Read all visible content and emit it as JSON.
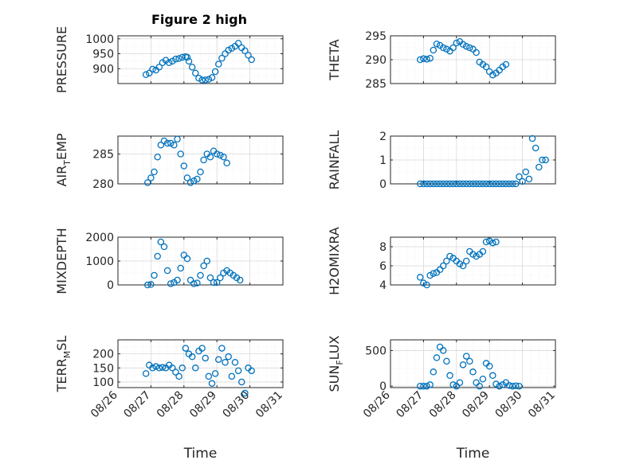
{
  "figure_title": "Figure 2 high",
  "marker_color": "#0072BD",
  "chart_data": [
    {
      "type": "scatter",
      "id": "pressure",
      "title": "Figure 2 high",
      "xlabel": "",
      "ylabel": "PRESSURE",
      "xlim": [
        0,
        5
      ],
      "ylim": [
        850,
        1010
      ],
      "yticks": [
        900,
        950,
        1000
      ],
      "xtick_labels": [],
      "points": [
        [
          0.85,
          880
        ],
        [
          0.95,
          885
        ],
        [
          1.05,
          898
        ],
        [
          1.15,
          895
        ],
        [
          1.25,
          905
        ],
        [
          1.35,
          920
        ],
        [
          1.45,
          928
        ],
        [
          1.55,
          920
        ],
        [
          1.65,
          925
        ],
        [
          1.75,
          932
        ],
        [
          1.85,
          934
        ],
        [
          1.95,
          938
        ],
        [
          2.05,
          940
        ],
        [
          2.1,
          938
        ],
        [
          2.15,
          925
        ],
        [
          2.25,
          905
        ],
        [
          2.35,
          885
        ],
        [
          2.45,
          868
        ],
        [
          2.55,
          862
        ],
        [
          2.65,
          862
        ],
        [
          2.75,
          864
        ],
        [
          2.85,
          870
        ],
        [
          2.95,
          890
        ],
        [
          3.05,
          915
        ],
        [
          3.15,
          935
        ],
        [
          3.25,
          950
        ],
        [
          3.35,
          962
        ],
        [
          3.45,
          968
        ],
        [
          3.55,
          975
        ],
        [
          3.65,
          985
        ],
        [
          3.75,
          970
        ],
        [
          3.85,
          960
        ],
        [
          3.95,
          945
        ],
        [
          4.05,
          930
        ]
      ]
    },
    {
      "type": "scatter",
      "id": "theta",
      "xlabel": "",
      "ylabel": "THETA",
      "xlim": [
        0,
        5
      ],
      "ylim": [
        285,
        295
      ],
      "yticks": [
        285,
        290,
        295
      ],
      "xtick_labels": [],
      "points": [
        [
          0.9,
          290
        ],
        [
          1.0,
          290.2
        ],
        [
          1.1,
          290.1
        ],
        [
          1.2,
          290.3
        ],
        [
          1.3,
          292
        ],
        [
          1.4,
          293.3
        ],
        [
          1.5,
          293.0
        ],
        [
          1.6,
          292.5
        ],
        [
          1.7,
          292.2
        ],
        [
          1.8,
          291.8
        ],
        [
          1.9,
          292.5
        ],
        [
          2.0,
          293.5
        ],
        [
          2.1,
          293.8
        ],
        [
          2.2,
          293.2
        ],
        [
          2.3,
          292.8
        ],
        [
          2.4,
          292.5
        ],
        [
          2.5,
          292.2
        ],
        [
          2.6,
          291.5
        ],
        [
          2.7,
          289.5
        ],
        [
          2.8,
          289.0
        ],
        [
          2.9,
          288.5
        ],
        [
          3.0,
          287.5
        ],
        [
          3.1,
          286.8
        ],
        [
          3.2,
          287.2
        ],
        [
          3.3,
          287.8
        ],
        [
          3.4,
          288.5
        ],
        [
          3.5,
          289.0
        ]
      ]
    },
    {
      "type": "scatter",
      "id": "air-temp",
      "xlabel": "",
      "ylabel": "AIR_TEMP",
      "xlim": [
        0,
        5
      ],
      "ylim": [
        280,
        288
      ],
      "yticks": [
        280,
        285
      ],
      "xtick_labels": [],
      "points": [
        [
          0.9,
          280.2
        ],
        [
          1.0,
          281.0
        ],
        [
          1.1,
          282.0
        ],
        [
          1.2,
          284.5
        ],
        [
          1.3,
          286.5
        ],
        [
          1.4,
          287.2
        ],
        [
          1.5,
          286.8
        ],
        [
          1.6,
          286.8
        ],
        [
          1.7,
          286.5
        ],
        [
          1.8,
          287.5
        ],
        [
          1.9,
          285.0
        ],
        [
          2.0,
          283.0
        ],
        [
          2.1,
          281.0
        ],
        [
          2.2,
          280.2
        ],
        [
          2.3,
          280.5
        ],
        [
          2.4,
          280.8
        ],
        [
          2.5,
          282.0
        ],
        [
          2.6,
          284.0
        ],
        [
          2.7,
          285.0
        ],
        [
          2.8,
          284.5
        ],
        [
          2.9,
          285.5
        ],
        [
          3.0,
          285.0
        ],
        [
          3.1,
          284.8
        ],
        [
          3.2,
          284.5
        ],
        [
          3.3,
          283.5
        ]
      ]
    },
    {
      "type": "scatter",
      "id": "rainfall",
      "xlabel": "",
      "ylabel": "RAINFALL",
      "xlim": [
        0,
        5
      ],
      "ylim": [
        0,
        2
      ],
      "yticks": [
        0,
        1,
        2
      ],
      "xtick_labels": [],
      "points": [
        [
          0.9,
          0
        ],
        [
          1.0,
          0
        ],
        [
          1.1,
          0
        ],
        [
          1.2,
          0
        ],
        [
          1.3,
          0
        ],
        [
          1.4,
          0
        ],
        [
          1.5,
          0
        ],
        [
          1.6,
          0
        ],
        [
          1.7,
          0
        ],
        [
          1.8,
          0
        ],
        [
          1.9,
          0
        ],
        [
          2.0,
          0
        ],
        [
          2.1,
          0
        ],
        [
          2.2,
          0
        ],
        [
          2.3,
          0
        ],
        [
          2.4,
          0
        ],
        [
          2.5,
          0
        ],
        [
          2.6,
          0
        ],
        [
          2.7,
          0
        ],
        [
          2.8,
          0
        ],
        [
          2.9,
          0
        ],
        [
          3.0,
          0
        ],
        [
          3.1,
          0
        ],
        [
          3.2,
          0
        ],
        [
          3.3,
          0
        ],
        [
          3.4,
          0
        ],
        [
          3.5,
          0
        ],
        [
          3.6,
          0
        ],
        [
          3.7,
          0
        ],
        [
          3.8,
          0
        ],
        [
          3.9,
          0.3
        ],
        [
          4.0,
          0.1
        ],
        [
          4.1,
          0.5
        ],
        [
          4.2,
          0.2
        ],
        [
          4.3,
          1.9
        ],
        [
          4.4,
          1.5
        ],
        [
          4.5,
          0.7
        ],
        [
          4.6,
          1.0
        ],
        [
          4.7,
          1.0
        ]
      ]
    },
    {
      "type": "scatter",
      "id": "mixdepth",
      "xlabel": "",
      "ylabel": "MIXDEPTH",
      "xlim": [
        0,
        5
      ],
      "ylim": [
        0,
        2000
      ],
      "yticks": [
        0,
        1000,
        2000
      ],
      "xtick_labels": [],
      "points": [
        [
          0.9,
          0
        ],
        [
          1.0,
          20
        ],
        [
          1.1,
          400
        ],
        [
          1.2,
          1200
        ],
        [
          1.3,
          1800
        ],
        [
          1.4,
          1600
        ],
        [
          1.5,
          600
        ],
        [
          1.6,
          50
        ],
        [
          1.7,
          100
        ],
        [
          1.8,
          200
        ],
        [
          1.9,
          700
        ],
        [
          2.0,
          1250
        ],
        [
          2.1,
          1100
        ],
        [
          2.2,
          200
        ],
        [
          2.3,
          50
        ],
        [
          2.4,
          80
        ],
        [
          2.5,
          400
        ],
        [
          2.6,
          800
        ],
        [
          2.7,
          1000
        ],
        [
          2.8,
          300
        ],
        [
          2.9,
          100
        ],
        [
          3.0,
          100
        ],
        [
          3.1,
          300
        ],
        [
          3.2,
          500
        ],
        [
          3.3,
          600
        ],
        [
          3.4,
          500
        ],
        [
          3.5,
          400
        ],
        [
          3.6,
          300
        ],
        [
          3.7,
          200
        ]
      ]
    },
    {
      "type": "scatter",
      "id": "h2omixra",
      "xlabel": "",
      "ylabel": "H2OMIXRA",
      "xlim": [
        0,
        5
      ],
      "ylim": [
        4,
        9
      ],
      "yticks": [
        4,
        6,
        8
      ],
      "xtick_labels": [],
      "points": [
        [
          0.9,
          4.8
        ],
        [
          1.0,
          4.2
        ],
        [
          1.1,
          4.0
        ],
        [
          1.2,
          5.0
        ],
        [
          1.3,
          5.2
        ],
        [
          1.4,
          5.3
        ],
        [
          1.5,
          5.6
        ],
        [
          1.6,
          6.0
        ],
        [
          1.7,
          6.5
        ],
        [
          1.8,
          7.0
        ],
        [
          1.9,
          6.8
        ],
        [
          2.0,
          6.5
        ],
        [
          2.1,
          6.2
        ],
        [
          2.2,
          6.0
        ],
        [
          2.3,
          6.5
        ],
        [
          2.4,
          7.5
        ],
        [
          2.5,
          7.2
        ],
        [
          2.6,
          7.0
        ],
        [
          2.7,
          7.2
        ],
        [
          2.8,
          7.5
        ],
        [
          2.9,
          8.5
        ],
        [
          3.0,
          8.6
        ],
        [
          3.1,
          8.4
        ],
        [
          3.2,
          8.5
        ]
      ]
    },
    {
      "type": "scatter",
      "id": "terr-msl",
      "xlabel": "Time",
      "ylabel": "TERR_MSL",
      "xlim": [
        0,
        5
      ],
      "ylim": [
        80,
        250
      ],
      "yticks": [
        100,
        150,
        200
      ],
      "xtick_labels": [
        "08/26",
        "08/27",
        "08/28",
        "08/29",
        "08/30",
        "08/31"
      ],
      "points": [
        [
          0.85,
          130
        ],
        [
          0.95,
          160
        ],
        [
          1.05,
          150
        ],
        [
          1.15,
          155
        ],
        [
          1.25,
          150
        ],
        [
          1.35,
          152
        ],
        [
          1.45,
          150
        ],
        [
          1.55,
          160
        ],
        [
          1.65,
          150
        ],
        [
          1.75,
          135
        ],
        [
          1.85,
          120
        ],
        [
          1.95,
          150
        ],
        [
          2.05,
          220
        ],
        [
          2.15,
          200
        ],
        [
          2.25,
          190
        ],
        [
          2.35,
          150
        ],
        [
          2.45,
          210
        ],
        [
          2.55,
          220
        ],
        [
          2.65,
          185
        ],
        [
          2.75,
          120
        ],
        [
          2.85,
          95
        ],
        [
          2.95,
          130
        ],
        [
          3.05,
          180
        ],
        [
          3.15,
          220
        ],
        [
          3.25,
          170
        ],
        [
          3.35,
          190
        ],
        [
          3.45,
          120
        ],
        [
          3.55,
          170
        ],
        [
          3.65,
          140
        ],
        [
          3.75,
          100
        ],
        [
          3.85,
          60
        ],
        [
          3.95,
          150
        ],
        [
          4.05,
          140
        ]
      ]
    },
    {
      "type": "scatter",
      "id": "sun-flux",
      "xlabel": "Time",
      "ylabel": "SUN_FLUX",
      "xlim": [
        0,
        5
      ],
      "ylim": [
        -20,
        650
      ],
      "yticks": [
        0,
        500
      ],
      "xtick_labels": [
        "08/26",
        "08/27",
        "08/28",
        "08/29",
        "08/30",
        "08/31"
      ],
      "points": [
        [
          0.9,
          0
        ],
        [
          1.0,
          0
        ],
        [
          1.1,
          0
        ],
        [
          1.2,
          20
        ],
        [
          1.3,
          200
        ],
        [
          1.4,
          400
        ],
        [
          1.5,
          550
        ],
        [
          1.6,
          500
        ],
        [
          1.7,
          350
        ],
        [
          1.8,
          150
        ],
        [
          1.9,
          20
        ],
        [
          2.0,
          0
        ],
        [
          2.1,
          50
        ],
        [
          2.2,
          300
        ],
        [
          2.3,
          420
        ],
        [
          2.4,
          350
        ],
        [
          2.5,
          200
        ],
        [
          2.6,
          50
        ],
        [
          2.7,
          0
        ],
        [
          2.8,
          100
        ],
        [
          2.9,
          320
        ],
        [
          3.0,
          280
        ],
        [
          3.1,
          150
        ],
        [
          3.2,
          30
        ],
        [
          3.3,
          0
        ],
        [
          3.4,
          20
        ],
        [
          3.5,
          50
        ],
        [
          3.6,
          10
        ],
        [
          3.7,
          0
        ],
        [
          3.8,
          5
        ],
        [
          3.9,
          0
        ]
      ]
    }
  ]
}
